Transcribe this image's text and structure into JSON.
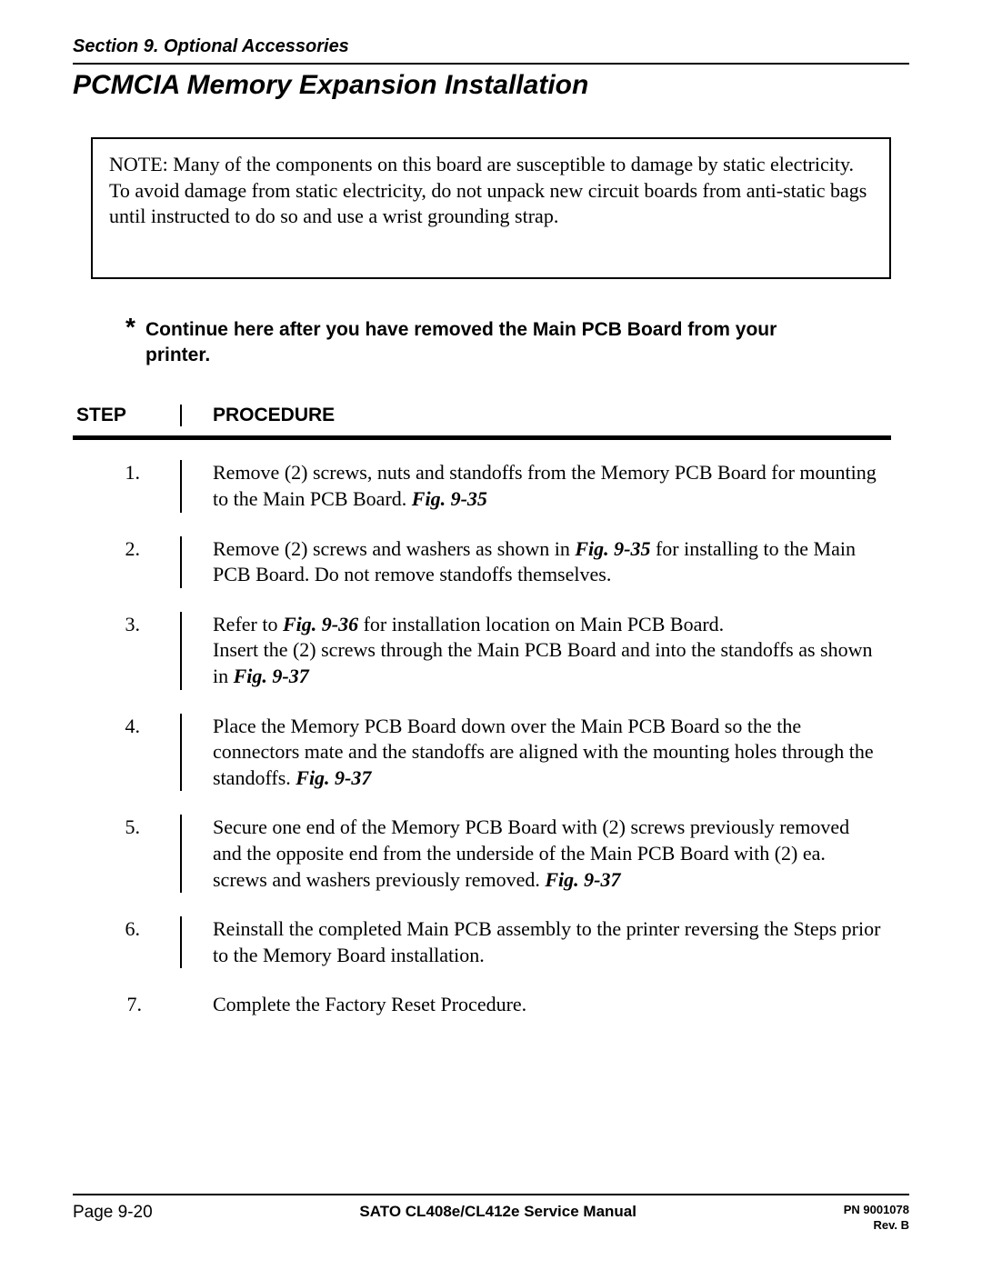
{
  "section_header": "Section 9.  Optional Accessories",
  "title": "PCMCIA Memory Expansion Installation",
  "note": "NOTE:  Many of the components on this board are susceptible to damage by static electricity.  To avoid damage from static electricity, do not unpack new circuit boards from anti-static bags until instructed to do so and use a wrist grounding strap.",
  "continue": {
    "star": "*",
    "text": "Continue here after you have removed the Main PCB Board from your printer."
  },
  "headers": {
    "step": "STEP",
    "procedure": "PROCEDURE"
  },
  "steps": [
    {
      "num": "1.",
      "parts": [
        {
          "t": "Remove (2) screws, nuts and standoffs from the Memory PCB Board for mounting to the Main PCB Board.  "
        },
        {
          "t": "Fig. 9-35",
          "fig": true
        }
      ]
    },
    {
      "num": "2.",
      "parts": [
        {
          "t": "Remove (2) screws and washers as shown in "
        },
        {
          "t": "Fig. 9-35",
          "fig": true
        },
        {
          "t": " for installing to the Main PCB Board. Do not remove standoffs themselves."
        }
      ]
    },
    {
      "num": "3.",
      "parts": [
        {
          "t": "Refer to "
        },
        {
          "t": "Fig. 9-36",
          "fig": true
        },
        {
          "t": " for installation location on Main PCB Board.\nInsert the (2) screws through the Main PCB Board and into the standoffs as shown in "
        },
        {
          "t": "Fig. 9-37",
          "fig": true
        }
      ]
    },
    {
      "num": "4.",
      "parts": [
        {
          "t": "Place the Memory PCB Board down over the Main PCB Board so the the connectors mate and the standoffs are aligned with the mounting holes through the standoffs.  "
        },
        {
          "t": "Fig. 9-37",
          "fig": true
        }
      ]
    },
    {
      "num": "5.",
      "parts": [
        {
          "t": "Secure one end of the Memory PCB Board with (2) screws previously removed and the opposite end from the underside of the Main PCB Board with (2) ea. screws and washers previously removed.  "
        },
        {
          "t": "Fig. 9-37",
          "fig": true
        }
      ]
    },
    {
      "num": "6.",
      "parts": [
        {
          "t": "Reinstall the completed Main PCB assembly to the printer reversing the Steps prior to the Memory Board installation."
        }
      ]
    },
    {
      "num": "7.",
      "parts": [
        {
          "t": "Complete the Factory Reset Procedure."
        }
      ],
      "last": true
    }
  ],
  "footer": {
    "left": "Page 9-20",
    "center": "SATO CL408e/CL412e Service Manual",
    "right1": "PN 9001078",
    "right2": "Rev. B"
  }
}
